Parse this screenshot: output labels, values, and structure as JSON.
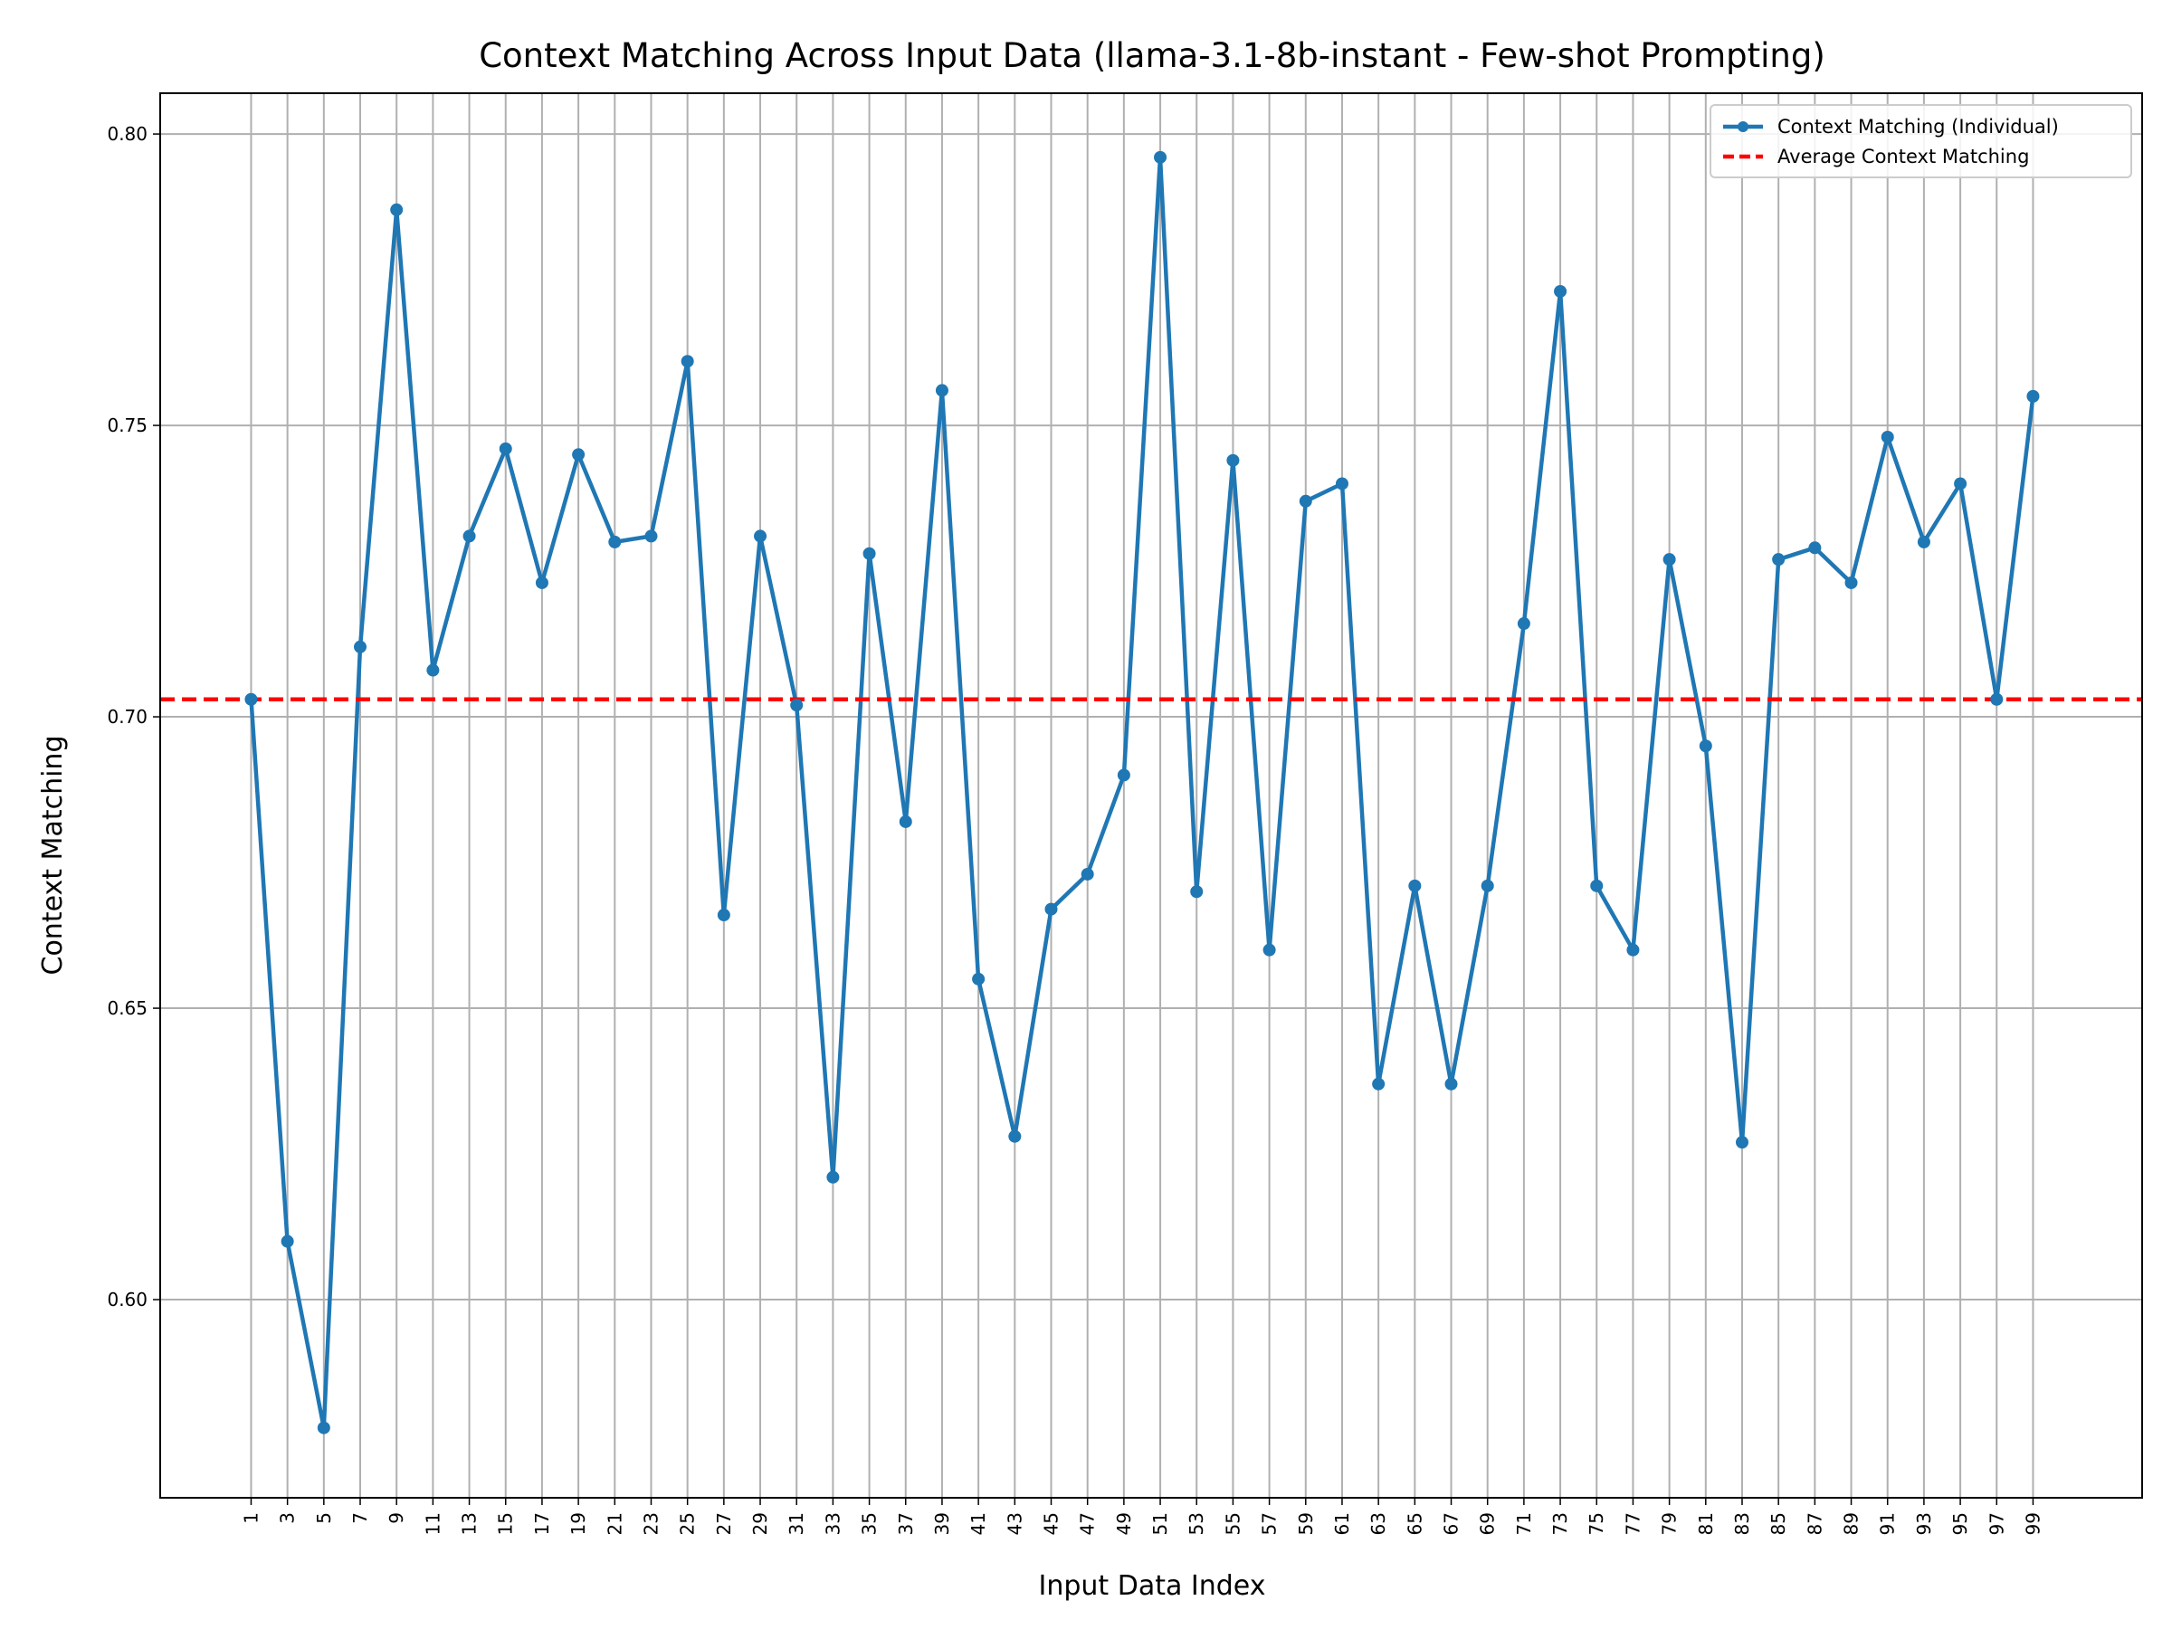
{
  "chart_data": {
    "type": "line",
    "title": "Context Matching Across Input Data (llama-3.1-8b-instant - Few-shot Prompting)",
    "xlabel": "Input Data Index",
    "ylabel": "Context Matching",
    "xlim": [
      -4,
      105
    ],
    "ylim": [
      0.566,
      0.807
    ],
    "xticks": [
      1,
      3,
      5,
      7,
      9,
      11,
      13,
      15,
      17,
      19,
      21,
      23,
      25,
      27,
      29,
      31,
      33,
      35,
      37,
      39,
      41,
      43,
      45,
      47,
      49,
      51,
      53,
      55,
      57,
      59,
      61,
      63,
      65,
      67,
      69,
      71,
      73,
      75,
      77,
      79,
      81,
      83,
      85,
      87,
      89,
      91,
      93,
      95,
      97,
      99
    ],
    "xtick_labels": [
      "1",
      "3",
      "5",
      "7",
      "9",
      "11",
      "13",
      "15",
      "17",
      "19",
      "21",
      "23",
      "25",
      "27",
      "29",
      "31",
      "33",
      "35",
      "37",
      "39",
      "41",
      "43",
      "45",
      "47",
      "49",
      "51",
      "53",
      "55",
      "57",
      "59",
      "61",
      "63",
      "65",
      "67",
      "69",
      "71",
      "73",
      "75",
      "77",
      "79",
      "81",
      "83",
      "85",
      "87",
      "89",
      "91",
      "93",
      "95",
      "97",
      "99"
    ],
    "yticks": [
      0.6,
      0.65,
      0.7,
      0.75,
      0.8
    ],
    "ytick_labels": [
      "0.60",
      "0.65",
      "0.70",
      "0.75",
      "0.80"
    ],
    "grid": true,
    "legend_position": "top-right",
    "series": [
      {
        "name": "Context Matching (Individual)",
        "color": "#1f77b4",
        "style": "solid-line-with-markers",
        "x": [
          1,
          3,
          5,
          7,
          9,
          11,
          13,
          15,
          17,
          19,
          21,
          23,
          25,
          27,
          29,
          31,
          33,
          35,
          37,
          39,
          41,
          43,
          45,
          47,
          49,
          51,
          53,
          55,
          57,
          59,
          61,
          63,
          65,
          67,
          69,
          71,
          73,
          75,
          77,
          79,
          81,
          83,
          85,
          87,
          89,
          91,
          93,
          95,
          97,
          99
        ],
        "y": [
          0.703,
          0.61,
          0.578,
          0.712,
          0.787,
          0.708,
          0.731,
          0.746,
          0.723,
          0.745,
          0.73,
          0.731,
          0.761,
          0.666,
          0.731,
          0.702,
          0.621,
          0.728,
          0.682,
          0.756,
          0.655,
          0.628,
          0.667,
          0.673,
          0.69,
          0.796,
          0.67,
          0.744,
          0.66,
          0.737,
          0.74,
          0.637,
          0.671,
          0.637,
          0.671,
          0.716,
          0.773,
          0.671,
          0.66,
          0.727,
          0.695,
          0.627,
          0.727,
          0.729,
          0.723,
          0.748,
          0.73,
          0.74,
          0.703,
          0.755
        ]
      },
      {
        "name": "Average Context Matching",
        "color": "#ff0000",
        "style": "dashed-horizontal-line",
        "value": 0.703
      }
    ]
  }
}
